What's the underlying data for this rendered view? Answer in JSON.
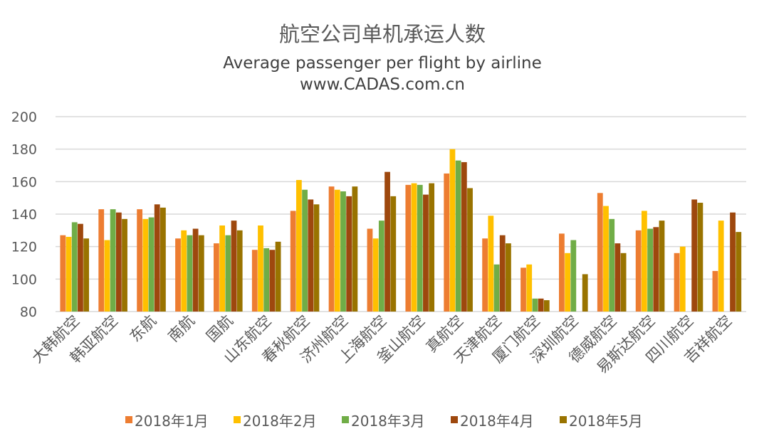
{
  "chart_data": {
    "type": "bar",
    "title": "航空公司单机承运人数",
    "subtitle": "Average passenger per flight by airline",
    "source": "www.CADAS.com.cn",
    "xlabel": "",
    "ylabel": "",
    "ylim": [
      80,
      200
    ],
    "yticks": [
      80,
      100,
      120,
      140,
      160,
      180,
      200
    ],
    "grid": true,
    "legend_position": "bottom",
    "categories": [
      "大韩航空",
      "韩亚航空",
      "东航",
      "南航",
      "国航",
      "山东航空",
      "春秋航空",
      "济州航空",
      "上海航空",
      "釜山航空",
      "真航空",
      "天津航空",
      "厦门航空",
      "深圳航空",
      "德威航空",
      "易斯达航空",
      "四川航空",
      "吉祥航空"
    ],
    "series": [
      {
        "name": "2018年1月",
        "color": "#ED7D31",
        "values": [
          127,
          143,
          143,
          125,
          122,
          118,
          142,
          157,
          131,
          158,
          165,
          125,
          107,
          128,
          153,
          130,
          116,
          105
        ]
      },
      {
        "name": "2018年2月",
        "color": "#FFC000",
        "values": [
          126,
          124,
          137,
          130,
          133,
          133,
          161,
          155,
          125,
          159,
          180,
          139,
          109,
          116,
          145,
          142,
          120,
          136
        ]
      },
      {
        "name": "2018年3月",
        "color": "#70AD47",
        "values": [
          135,
          143,
          138,
          127,
          127,
          119,
          155,
          154,
          136,
          158,
          173,
          109,
          88,
          124,
          137,
          131,
          null,
          null
        ]
      },
      {
        "name": "2018年4月",
        "color": "#9E480E",
        "values": [
          134,
          141,
          146,
          131,
          136,
          118,
          149,
          151,
          166,
          152,
          172,
          127,
          88,
          null,
          122,
          132,
          149,
          141
        ]
      },
      {
        "name": "2018年5月",
        "color": "#997300",
        "values": [
          125,
          137,
          144,
          127,
          130,
          123,
          146,
          157,
          151,
          159,
          156,
          122,
          87,
          103,
          116,
          136,
          147,
          129
        ]
      }
    ]
  }
}
